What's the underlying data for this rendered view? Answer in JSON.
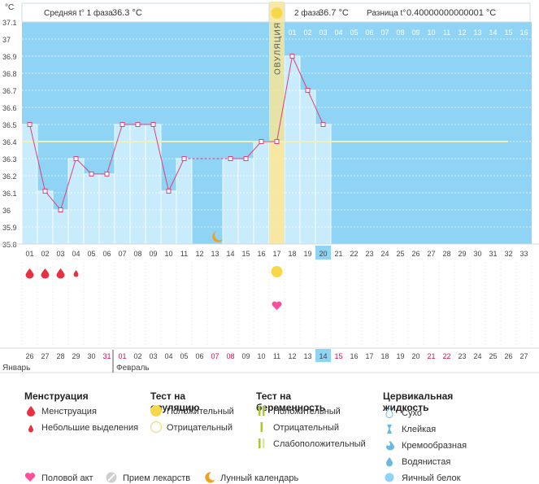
{
  "header": {
    "degree_unit": "°C",
    "phase1_label": "Средняя t° 1 фаза",
    "phase1_value": "36.3 °C",
    "phase2_label": "2 фаза",
    "phase2_value": "36.7 °C",
    "diff_label": "Разница t°",
    "diff_value": "0.40000000000001 °C"
  },
  "chart_data": {
    "type": "line",
    "ylim": [
      35.8,
      37.1
    ],
    "yticks": [
      "35.8",
      "35.9",
      "36",
      "36.1",
      "36.2",
      "36.3",
      "36.4",
      "36.5",
      "36.6",
      "36.7",
      "36.8",
      "36.9",
      "37",
      "37.1"
    ],
    "cycle_days": [
      "01",
      "02",
      "03",
      "04",
      "05",
      "06",
      "07",
      "08",
      "09",
      "10",
      "11",
      "12",
      "13",
      "14",
      "15",
      "16",
      "17",
      "18",
      "19",
      "20",
      "21",
      "22",
      "23",
      "24",
      "25",
      "26",
      "27",
      "28",
      "29",
      "30",
      "31",
      "32",
      "33"
    ],
    "cycle_day_today": "20",
    "ovulation_day": "17",
    "ovulation_label": "ОВУЛЯЦИЯ",
    "post_ovulation_days": [
      "01",
      "02",
      "03",
      "04",
      "05",
      "06",
      "07",
      "08",
      "09",
      "10",
      "11",
      "12",
      "13",
      "14",
      "15",
      "16"
    ],
    "series": [
      {
        "values": [
          36.5,
          36.11,
          36.0,
          36.3,
          36.21,
          36.21,
          36.5,
          36.5,
          36.5,
          36.11,
          36.3,
          null,
          null,
          36.3,
          36.3,
          36.4,
          36.4,
          36.9,
          36.7,
          36.5
        ]
      }
    ],
    "coverline": 36.4,
    "menstruation": [
      "large",
      "large",
      "large",
      "small"
    ],
    "moon_day": "13",
    "ovulation_test_day": "17",
    "intercourse_day": "17",
    "calendar_dates": [
      "26",
      "27",
      "28",
      "29",
      "30",
      "31",
      "01",
      "02",
      "03",
      "04",
      "05",
      "06",
      "07",
      "08",
      "09",
      "10",
      "11",
      "12",
      "13",
      "14",
      "15",
      "16",
      "17",
      "18",
      "19",
      "20",
      "21",
      "22",
      "23",
      "24",
      "25",
      "26",
      "27"
    ],
    "calendar_weekend_flags": [
      false,
      false,
      false,
      false,
      false,
      true,
      true,
      false,
      false,
      false,
      false,
      false,
      true,
      true,
      false,
      false,
      false,
      false,
      false,
      false,
      true,
      false,
      false,
      false,
      false,
      false,
      true,
      true,
      false,
      false,
      false,
      false,
      false
    ],
    "calendar_today": "14",
    "month1": "Январь",
    "month2": "Февраль"
  },
  "legend": {
    "menstruation_title": "Менструация",
    "menstruation_item": "Менструация",
    "spotting_item": "Небольшие выделения",
    "ovulation_test_title": "Тест на овуляцию",
    "positive": "Положительный",
    "negative": "Отрицательный",
    "pregnancy_test_title": "Тест на беременность",
    "preg_positive": "Положительный",
    "preg_negative": "Отрицательный",
    "preg_weak": "Слабоположительный",
    "cervical_title": "Цервикальная жидкость",
    "dry": "Сухо",
    "sticky": "Клейкая",
    "creamy": "Кремообразная",
    "watery": "Водянистая",
    "eggwhite": "Яичный белок",
    "intercourse": "Половой акт",
    "medication": "Прием лекарств",
    "lunar": "Лунный календарь"
  },
  "colors": {
    "sky": "#8fd4f5",
    "bar": "#c9ecfc",
    "line": "#e0407a",
    "ovulation": "#f4e59a",
    "coverline": "#eef0b8",
    "drop": "#e83040",
    "sun": "#f7d84a",
    "moon": "#f0a020",
    "today": "#8fd4f5",
    "weekend": "#d0104a"
  }
}
